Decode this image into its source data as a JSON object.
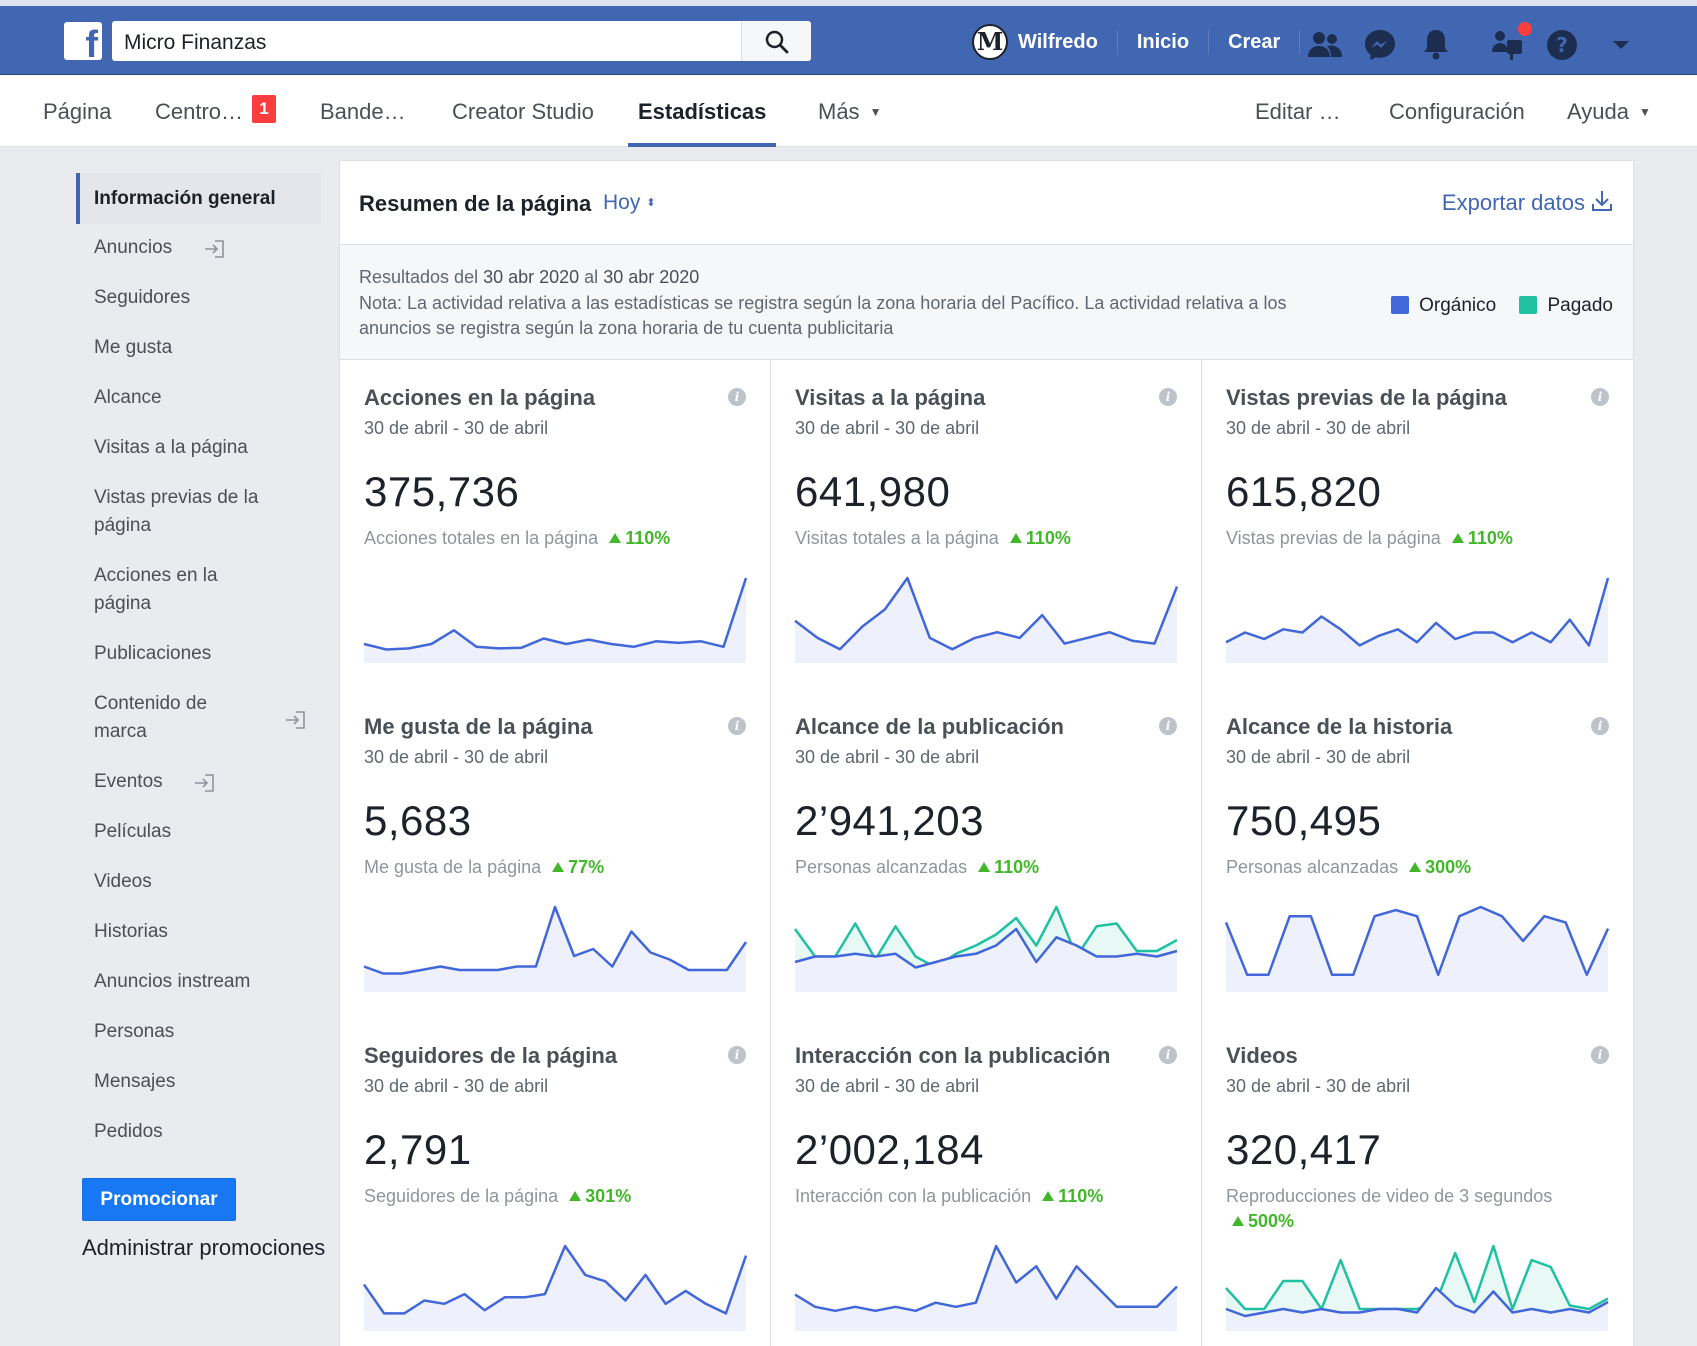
{
  "topbar": {
    "search_value": "Micro Finanzas",
    "avatar_letter": "M",
    "user_name": "Wilfredo",
    "home_label": "Inicio",
    "create_label": "Crear"
  },
  "tabs": {
    "pagina": "Página",
    "centro": "Centro…",
    "centro_badge": "1",
    "bandeja": "Bande…",
    "creator_studio": "Creator Studio",
    "estadisticas": "Estadísticas",
    "mas": "Más",
    "editar": "Editar …",
    "configuracion": "Configuración",
    "ayuda": "Ayuda"
  },
  "sidebar": {
    "items": [
      "Información general",
      "Anuncios",
      "Seguidores",
      "Me gusta",
      "Alcance",
      "Visitas a la página",
      "Vistas previas de la página",
      "Acciones en la página",
      "Publicaciones",
      "Contenido de marca",
      "Eventos",
      "Películas",
      "Videos",
      "Historias",
      "Anuncios instream",
      "Personas",
      "Mensajes",
      "Pedidos"
    ],
    "promote_label": "Promocionar",
    "manage_label": "Administrar promociones"
  },
  "summary": {
    "title": "Resumen de la página",
    "period": "Hoy",
    "export_label": "Exportar datos",
    "range_prefix": "Resultados del ",
    "range_start": "30 abr 2020",
    "range_mid": " al ",
    "range_end": "30 abr 2020",
    "note": "Nota: La actividad relativa a las estadísticas se registra según la zona horaria del Pacífico. La actividad relativa a los anuncios se registra según la zona horaria de tu cuenta publicitaria",
    "legend_organic": "Orgánico",
    "legend_paid": "Pagado"
  },
  "colors": {
    "organic": "#4267d8",
    "paid": "#20c1a2",
    "accent": "#4267b2",
    "positive": "#42b72a"
  },
  "cards": [
    {
      "title": "Acciones en la página",
      "date": "30 de abril - 30 de abril",
      "value": "375,736",
      "sub": "Acciones totales en la página",
      "delta": "110%",
      "organic": [
        2,
        1,
        1.2,
        2,
        4.5,
        1.5,
        1.2,
        1.3,
        3,
        2,
        2.8,
        2,
        1.5,
        2.5,
        2.2,
        2.5,
        1.5,
        14
      ]
    },
    {
      "title": "Visitas a la página",
      "date": "30 de abril - 30 de abril",
      "value": "641,980",
      "sub": "Visitas totales a la página",
      "delta": "110%",
      "organic": [
        12,
        6,
        2,
        10,
        16,
        27,
        6,
        2,
        6,
        8,
        6,
        14,
        4,
        6,
        8,
        5,
        4,
        24
      ]
    },
    {
      "title": "Vistas previas de la página",
      "date": "30 de abril - 30 de abril",
      "value": "615,820",
      "sub": "Vistas previas de la página",
      "delta": "110%",
      "organic": [
        2,
        3.5,
        2.5,
        4,
        3.5,
        6,
        4,
        1.5,
        3,
        4,
        2,
        5,
        2.5,
        3.5,
        3.5,
        2,
        3.5,
        2,
        5.5,
        1.5,
        12
      ]
    },
    {
      "title": "Me gusta de la página",
      "date": "30 de abril - 30 de abril",
      "value": "5,683",
      "sub": "Me gusta de la página",
      "delta": "77%",
      "organic": [
        5,
        3,
        3,
        4,
        5,
        4,
        4,
        4,
        5,
        5,
        22,
        8,
        10,
        5,
        15,
        9,
        7,
        4,
        4,
        4,
        12
      ]
    },
    {
      "title": "Alcance de la publicación",
      "date": "30 de abril - 30 de abril",
      "value": "2’941,203",
      "sub": "Personas alcanzadas",
      "delta": "110%",
      "organic": [
        8,
        10,
        10,
        11,
        10,
        11,
        6,
        8,
        10,
        11,
        14,
        20,
        8,
        17,
        14,
        10,
        10,
        11,
        10,
        12
      ],
      "paid": [
        20,
        10,
        10,
        22,
        9,
        21,
        10,
        6,
        11,
        14,
        18,
        24,
        14,
        28,
        10,
        21,
        22,
        12,
        12,
        16
      ]
    },
    {
      "title": "Alcance de la historia",
      "date": "30 de abril - 30 de abril",
      "value": "750,495",
      "sub": "Personas alcanzadas",
      "delta": "300%",
      "organic": [
        20,
        3,
        3,
        22,
        22,
        3,
        3,
        22,
        24,
        22,
        3,
        22,
        25,
        22,
        14,
        22,
        20,
        3,
        18
      ]
    },
    {
      "title": "Seguidores de la página",
      "date": "30 de abril - 30 de abril",
      "value": "2,791",
      "sub": "Seguidores de la página",
      "delta": "301%",
      "organic": [
        12,
        3,
        3,
        7,
        6,
        9,
        4,
        8,
        8,
        9,
        24,
        15,
        13,
        7,
        15,
        6,
        10,
        6,
        3,
        21
      ]
    },
    {
      "title": "Interacción con la publicación",
      "date": "30 de abril - 30 de abril",
      "value": "2’002,184",
      "sub": "Interacción con la publicación",
      "delta": "110%",
      "organic": [
        7,
        4,
        3,
        4,
        3,
        4,
        3,
        5,
        4,
        5,
        19,
        10,
        14,
        6,
        14,
        9,
        4,
        4,
        4,
        9
      ]
    },
    {
      "title": "Videos",
      "date": "30 de abril - 30 de abril",
      "value": "320,417",
      "sub": "Reproducciones de video de 3 segundos",
      "delta": "500%",
      "organic": [
        4,
        2,
        3,
        4,
        3,
        4,
        3,
        3,
        4,
        4,
        3,
        10,
        5,
        3,
        9,
        3,
        4,
        3,
        4,
        3,
        6
      ],
      "paid": [
        10,
        4,
        4,
        12,
        12,
        4,
        18,
        4,
        4,
        4,
        4,
        6,
        20,
        6,
        22,
        4,
        18,
        16,
        5,
        4,
        7
      ]
    }
  ]
}
